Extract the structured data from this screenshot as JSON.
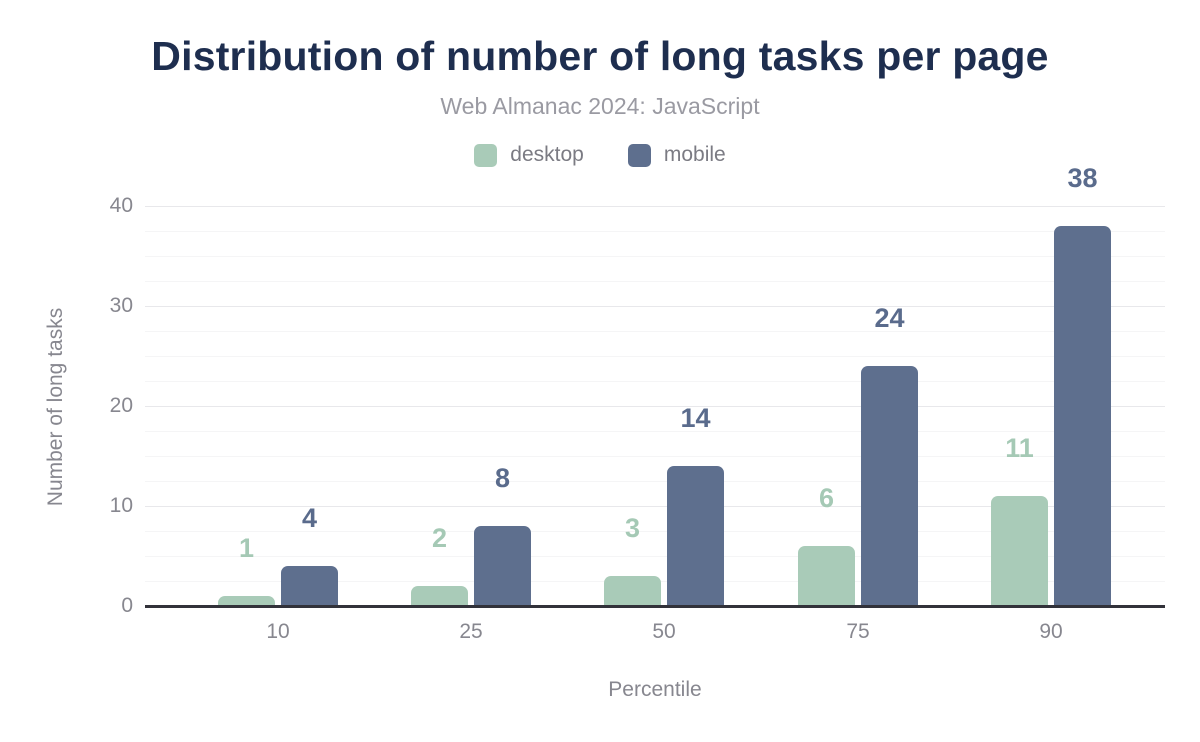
{
  "chart_data": {
    "type": "bar",
    "title": "Distribution of number of long tasks per page",
    "subtitle": "Web Almanac 2024: JavaScript",
    "xlabel": "Percentile",
    "ylabel": "Number of long tasks",
    "categories": [
      "10",
      "25",
      "50",
      "75",
      "90"
    ],
    "series": [
      {
        "name": "desktop",
        "values": [
          1,
          2,
          3,
          6,
          11
        ],
        "color": "#a9cbb8",
        "label_color": "#a5c9b5"
      },
      {
        "name": "mobile",
        "values": [
          4,
          8,
          14,
          24,
          38
        ],
        "color": "#5e6f8e",
        "label_color": "#5a6b8c"
      }
    ],
    "ylim": [
      0,
      40
    ],
    "yticks": [
      0,
      10,
      20,
      30,
      40
    ],
    "minor_grid_step": 2.5,
    "grid": true,
    "legend_position": "top",
    "data_labels": true
  },
  "colors": {
    "background": "#ffffff",
    "title": "#1e2e4f",
    "subtitle": "#9a9aa2",
    "legend_text": "#7b7b83",
    "axis_text": "#87878f",
    "axis_line": "#32323a",
    "grid_major": "#e8e8eb",
    "grid_minor": "#f5f5f6"
  }
}
